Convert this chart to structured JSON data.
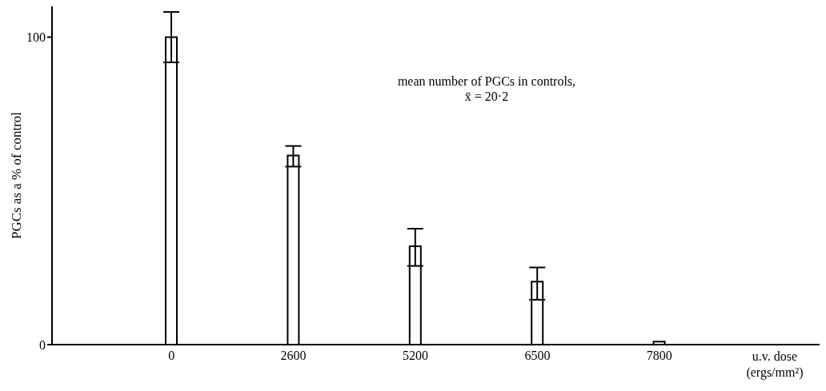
{
  "chart_data": {
    "type": "bar",
    "categories": [
      "0",
      "2600",
      "5200",
      "6500",
      "7800"
    ],
    "values": [
      100,
      61.5,
      32,
      20.5,
      1
    ],
    "errors": [
      [
        91.8,
        108.2
      ],
      [
        57.9,
        64.6
      ],
      [
        25.6,
        37.7
      ],
      [
        14.6,
        25.1
      ],
      null
    ],
    "color": "#ffffff",
    "ylim": [
      0,
      110
    ],
    "yticks": [
      0,
      100
    ],
    "ylabel": "PGCs as a % of control",
    "xlabel": "u.v. dose (ergs/mm²)",
    "annotations": [
      "mean number of PGCs in controls,",
      "x̄ = 20·2"
    ],
    "grid": false,
    "legend": false
  }
}
